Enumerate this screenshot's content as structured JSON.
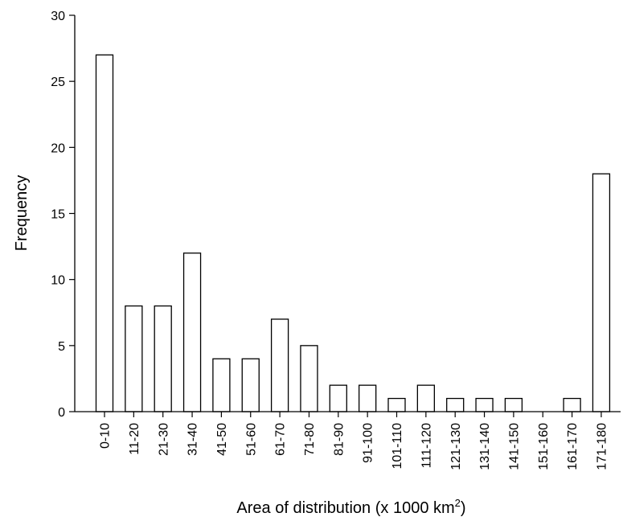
{
  "chart_data": {
    "type": "bar",
    "categories": [
      "0-10",
      "11-20",
      "21-30",
      "31-40",
      "41-50",
      "51-60",
      "61-70",
      "71-80",
      "81-90",
      "91-100",
      "101-110",
      "111-120",
      "121-130",
      "131-140",
      "141-150",
      "151-160",
      "161-170",
      "171-180"
    ],
    "values": [
      27,
      8,
      8,
      12,
      4,
      4,
      7,
      5,
      2,
      2,
      1,
      2,
      1,
      1,
      1,
      0,
      1,
      18
    ],
    "title": "",
    "xlabel": "Area of distribution (x 1000 km",
    "xlabel_superscript": "2",
    "xlabel_suffix": ")",
    "ylabel": "Frequency",
    "ylim": [
      0,
      30
    ],
    "yticks": [
      0,
      5,
      10,
      15,
      20,
      25,
      30
    ],
    "grid": false,
    "legend": "none",
    "bar_fill": "#ffffff",
    "bar_stroke": "#000000"
  }
}
